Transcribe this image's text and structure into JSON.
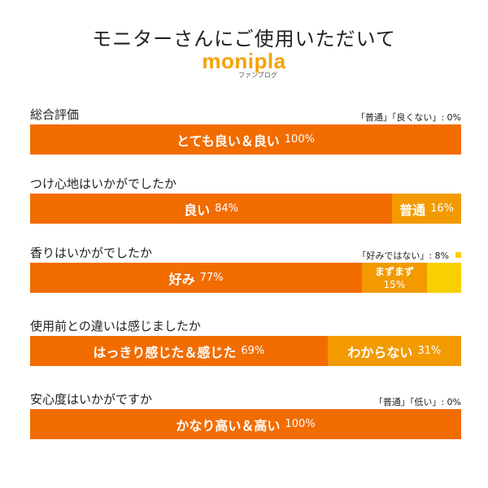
{
  "header": {
    "title": "モニターさんにご使用いただいて",
    "logo_text": "monipla",
    "logo_sub": "ファンブログ"
  },
  "colors": {
    "primary": "#f26c00",
    "secondary": "#f29a00",
    "tertiary": "#f8d000"
  },
  "chart_data": [
    {
      "type": "bar",
      "title": "総合評価",
      "note": "「普通」「良くない」: 0%",
      "segments": [
        {
          "label": "とても良い＆良い",
          "pct_text": "100%",
          "value": 100,
          "color": "#f26c00"
        }
      ]
    },
    {
      "type": "bar",
      "title": "つけ心地はいかがでしたか",
      "note": "",
      "segments": [
        {
          "label": "良い",
          "pct_text": "84%",
          "value": 84,
          "color": "#f26c00"
        },
        {
          "label": "普通",
          "pct_text": "16%",
          "value": 16,
          "color": "#f29a00"
        }
      ]
    },
    {
      "type": "bar",
      "title": "香りはいかがでしたか",
      "note": "「好みではない」: 8%",
      "note_swatch": true,
      "segments": [
        {
          "label": "好み",
          "pct_text": "77%",
          "value": 77,
          "color": "#f26c00"
        },
        {
          "label": "まずまず",
          "pct_text": "15%",
          "value": 15,
          "color": "#f29a00",
          "stack": true
        },
        {
          "label": "",
          "pct_text": "",
          "value": 8,
          "color": "#f8d000"
        }
      ]
    },
    {
      "type": "bar",
      "title": "使用前との違いは感じましたか",
      "note": "",
      "segments": [
        {
          "label": "はっきり感じた＆感じた",
          "pct_text": "69%",
          "value": 69,
          "color": "#f26c00"
        },
        {
          "label": "わからない",
          "pct_text": "31%",
          "value": 31,
          "color": "#f29a00"
        }
      ]
    },
    {
      "type": "bar",
      "title": "安心度はいかがですか",
      "note": "「普通」「低い」: 0%",
      "segments": [
        {
          "label": "かなり高い＆高い",
          "pct_text": "100%",
          "value": 100,
          "color": "#f26c00"
        }
      ]
    }
  ]
}
